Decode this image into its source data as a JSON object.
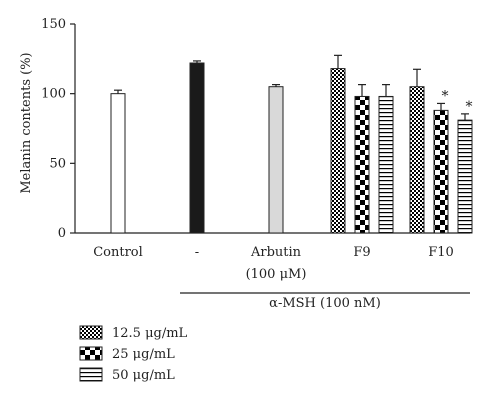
{
  "chart_data": {
    "type": "bar",
    "ylabel": "Melanin contents (%)",
    "ylim": [
      0,
      150
    ],
    "yticks": [
      0,
      50,
      100,
      150
    ],
    "grid": false,
    "groups": [
      {
        "label": "Control",
        "sublabel": ""
      },
      {
        "label": "-",
        "sublabel": ""
      },
      {
        "label": "Arbutin",
        "sublabel": "(100 μM)"
      },
      {
        "label": "F9",
        "sublabel": ""
      },
      {
        "label": "F10",
        "sublabel": ""
      }
    ],
    "bars": [
      {
        "group": 0,
        "value": 100,
        "error": 2.5,
        "fill": "white",
        "sig": ""
      },
      {
        "group": 1,
        "value": 122,
        "error": 1.5,
        "fill": "black",
        "sig": ""
      },
      {
        "group": 2,
        "value": 105,
        "error": 1.5,
        "fill": "lightgray",
        "sig": ""
      },
      {
        "group": 3,
        "series": 0,
        "value": 118,
        "error": 9.5,
        "fill": "checker-small",
        "sig": ""
      },
      {
        "group": 3,
        "series": 1,
        "value": 98,
        "error": 8.5,
        "fill": "checker-large",
        "sig": ""
      },
      {
        "group": 3,
        "series": 2,
        "value": 98,
        "error": 8.5,
        "fill": "hstripes",
        "sig": ""
      },
      {
        "group": 4,
        "series": 0,
        "value": 105,
        "error": 12.5,
        "fill": "checker-small",
        "sig": ""
      },
      {
        "group": 4,
        "series": 1,
        "value": 88,
        "error": 5,
        "fill": "checker-large",
        "sig": "*"
      },
      {
        "group": 4,
        "series": 2,
        "value": 81,
        "error": 4.5,
        "fill": "hstripes",
        "sig": "*"
      }
    ],
    "treatment_label": "α-MSH (100 nM)",
    "legend": {
      "position": "bottom-left",
      "entries": [
        {
          "label": "12.5 μg/mL",
          "fill": "checker-small"
        },
        {
          "label": "25 μg/mL",
          "fill": "checker-large"
        },
        {
          "label": "50 μg/mL",
          "fill": "hstripes"
        }
      ]
    }
  }
}
